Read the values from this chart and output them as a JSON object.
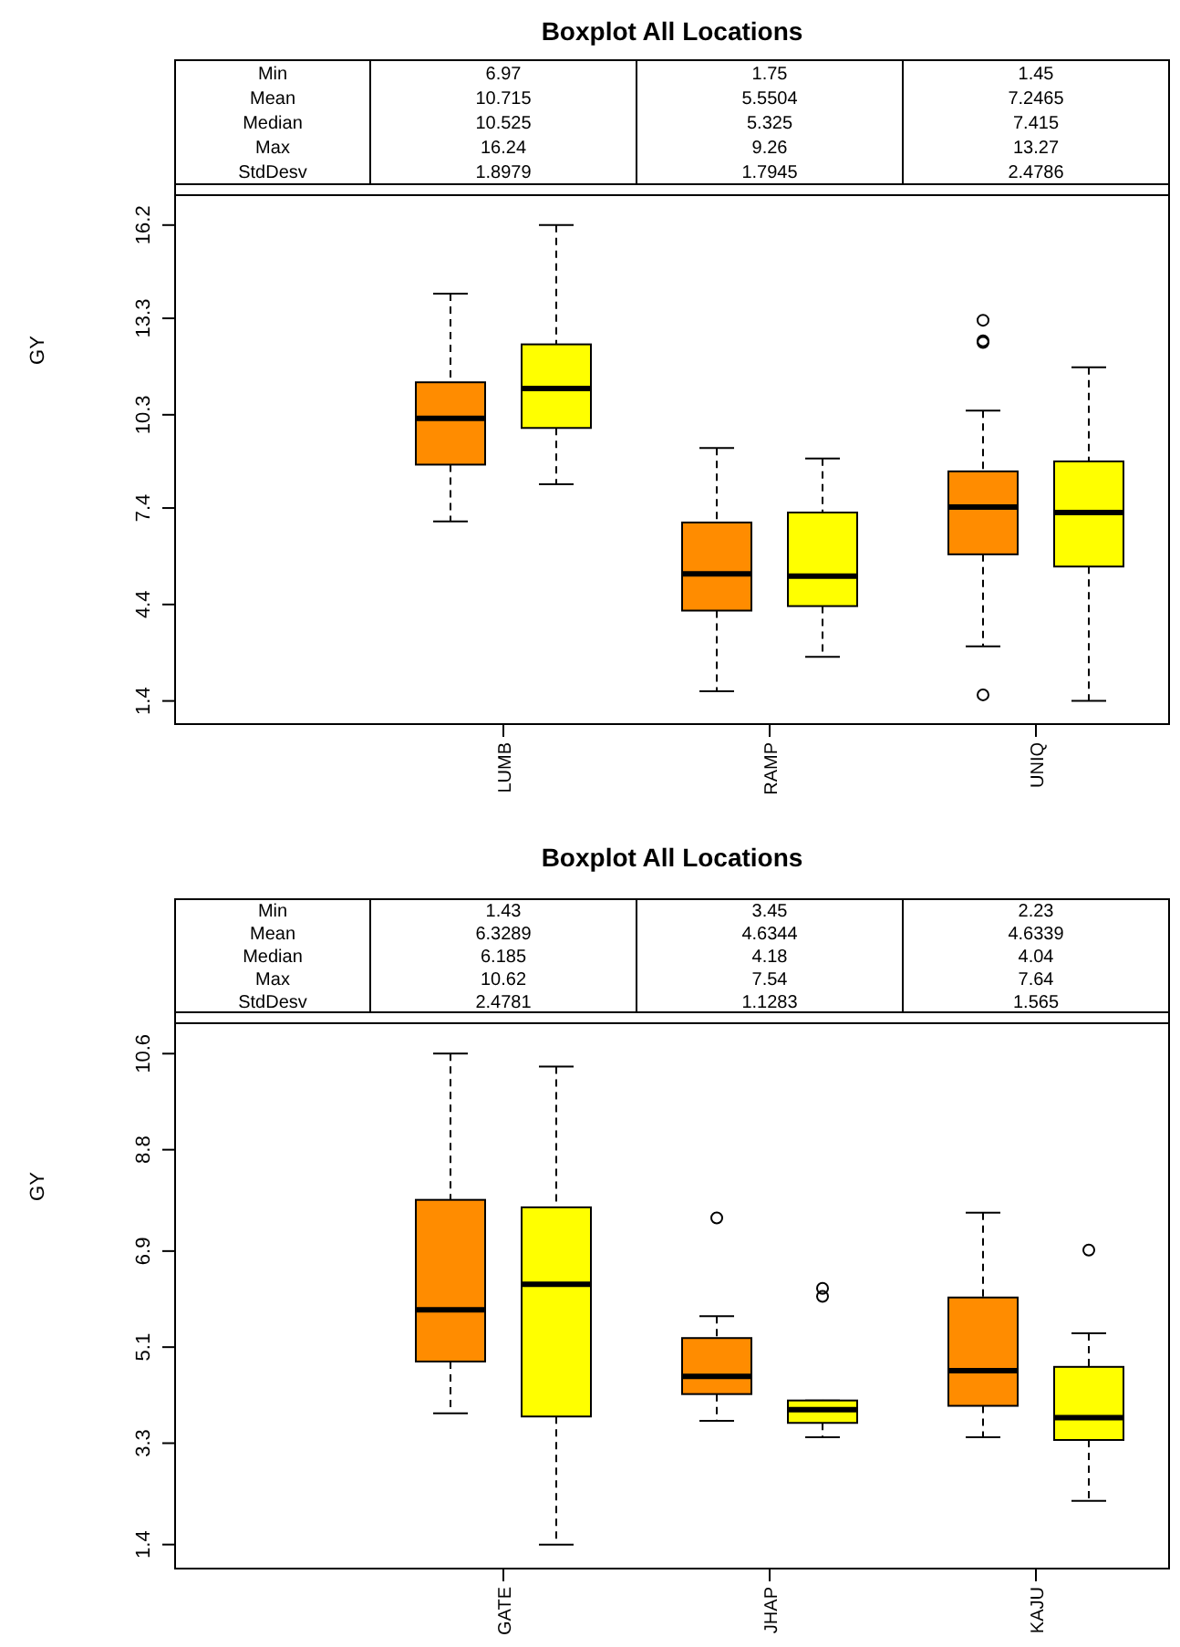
{
  "chart_data": [
    {
      "type": "box",
      "title": "Boxplot All Locations",
      "ylabel": "GY",
      "categories": [
        "LUMB",
        "RAMP",
        "UNIQ"
      ],
      "ylim": [
        0.68,
        17.13
      ],
      "yticks": [
        1.4,
        4.4,
        7.4,
        10.3,
        13.3,
        16.2
      ],
      "annotations": [
        "Min",
        "Mean",
        "Median",
        "Max",
        "StdDesv",
        "6.97",
        "10.715",
        "10.525",
        "16.24",
        "1.8979",
        "1.75",
        "5.5504",
        "5.325",
        "9.26",
        "1.7945",
        "1.45",
        "7.2465",
        "7.415",
        "13.27",
        "2.4786"
      ],
      "series": [
        {
          "color": "#ff8c00",
          "boxes": [
            {
              "low": 6.98,
              "q1": 8.75,
              "median": 10.19,
              "q3": 11.31,
              "high": 14.07
            },
            {
              "low": 1.7,
              "q1": 4.21,
              "median": 5.35,
              "q3": 6.95,
              "high": 9.27
            },
            {
              "low": 3.1,
              "q1": 5.96,
              "median": 7.43,
              "q3": 8.54,
              "high": 10.43,
              "outliers": [
                13.24,
                12.6,
                12.55,
                1.59
              ]
            }
          ]
        },
        {
          "color": "#ffff00",
          "boxes": [
            {
              "low": 8.14,
              "q1": 9.89,
              "median": 11.12,
              "q3": 12.49,
              "high": 16.2
            },
            {
              "low": 2.77,
              "q1": 4.35,
              "median": 5.28,
              "q3": 7.26,
              "high": 8.94
            },
            {
              "low": 1.4,
              "q1": 5.58,
              "median": 7.26,
              "q3": 8.85,
              "high": 11.78
            }
          ]
        }
      ]
    },
    {
      "type": "box",
      "title": "Boxplot All Locations",
      "ylabel": "GY",
      "categories": [
        "GATE",
        "JHAP",
        "KAJU"
      ],
      "ylim": [
        0.95,
        11.17
      ],
      "yticks": [
        1.4,
        3.3,
        5.1,
        6.9,
        8.8,
        10.6
      ],
      "annotations": [
        "Min",
        "Mean",
        "Median",
        "Max",
        "StdDesv",
        "1.43",
        "6.3289",
        "6.185",
        "10.62",
        "2.4781",
        "3.45",
        "4.6344",
        "4.18",
        "7.54",
        "1.1283",
        "2.23",
        "4.6339",
        "4.04",
        "7.64",
        "1.565"
      ],
      "series": [
        {
          "color": "#ff8c00",
          "boxes": [
            {
              "low": 3.86,
              "q1": 4.83,
              "median": 5.8,
              "q3": 7.86,
              "high": 10.6
            },
            {
              "low": 3.72,
              "q1": 4.22,
              "median": 4.55,
              "q3": 5.27,
              "high": 5.68,
              "outliers": [
                7.52
              ]
            },
            {
              "low": 3.41,
              "q1": 4.0,
              "median": 4.66,
              "q3": 6.03,
              "high": 7.62
            }
          ]
        },
        {
          "color": "#ffff00",
          "boxes": [
            {
              "low": 1.4,
              "q1": 3.8,
              "median": 6.28,
              "q3": 7.72,
              "high": 10.36
            },
            {
              "low": 3.41,
              "q1": 3.68,
              "median": 3.93,
              "q3": 4.1,
              "high": 4.1,
              "outliers": [
                6.2,
                6.05
              ]
            },
            {
              "low": 2.22,
              "q1": 3.36,
              "median": 3.78,
              "q3": 4.73,
              "high": 5.36,
              "outliers": [
                6.92
              ]
            }
          ]
        }
      ]
    }
  ]
}
